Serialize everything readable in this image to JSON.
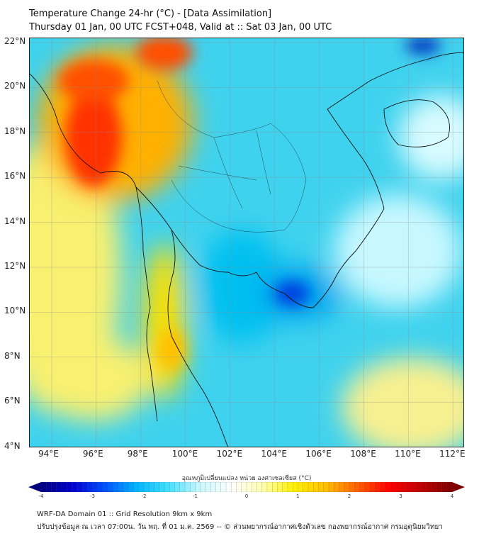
{
  "title": {
    "line1": "Temperature Change 24-hr (°C) - [Data Assimilation]",
    "line2": "Thursday 01 Jan, 00 UTC FCST+048, Valid at :: Sat 03 Jan, 00 UTC"
  },
  "lat_ticks": [
    "22°N",
    "20°N",
    "18°N",
    "16°N",
    "14°N",
    "12°N",
    "10°N",
    "8°N",
    "6°N",
    "4°N"
  ],
  "lon_ticks": [
    "94°E",
    "96°E",
    "98°E",
    "100°E",
    "102°E",
    "104°E",
    "106°E",
    "108°E",
    "110°E",
    "112°E"
  ],
  "colorbar": {
    "label": "อุณหภูมิเปลี่ยนแปลง หน่วย องศาเซลเซียส (°C)",
    "ticks": [
      "-4",
      "-3",
      "-2",
      "-1",
      "0",
      "1",
      "2",
      "3",
      "4"
    ],
    "min": -4,
    "max": 4,
    "colors": [
      "#00007f",
      "#0000d0",
      "#0050ff",
      "#00b4ff",
      "#40e0ff",
      "#c8f8ff",
      "#ffffff",
      "#ffffb0",
      "#fff000",
      "#ffc000",
      "#ff6000",
      "#ff0000",
      "#c00000",
      "#7f0000"
    ]
  },
  "footer": {
    "line1": "WRF-DA Domain 01 :: Grid Resolution 9km x 9km",
    "line2": "ปรับปรุงข้อมูล ณ เวลา 07:00น. วัน พฤ. ที่ 01 ม.ค. 2569 -- © ส่วนพยากรณ์อากาศเชิงตัวเลข กองพยากรณ์อากาศ กรมอุตุนิยมวิทยา"
  }
}
